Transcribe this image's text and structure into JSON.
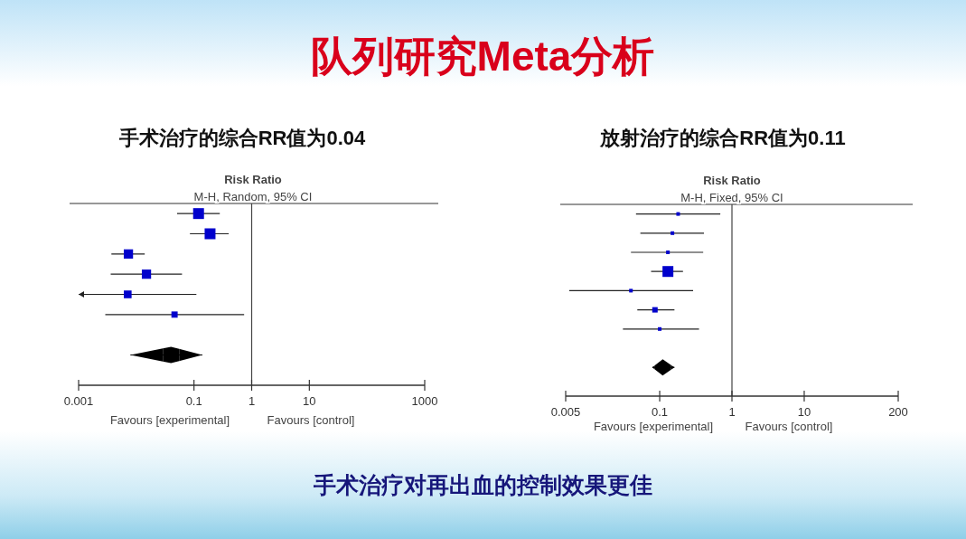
{
  "chart_data": [
    {
      "type": "other",
      "title": "队列研究Meta分析",
      "annotations": [
        "手术治疗对再出血的控制效果更佳"
      ]
    },
    {
      "type": "scatter",
      "orientation": "horizontal",
      "log": "x",
      "title": "手术治疗的综合RR值为0.04",
      "categories": [
        null,
        null,
        null,
        null,
        null,
        null,
        null,
        null,
        null
      ],
      "xlim": [
        0.001,
        1000
      ],
      "xticks": [
        0.001,
        0.1,
        1,
        10,
        1000
      ],
      "ref_lines": [
        {
          "axis": "x",
          "value": 1
        }
      ],
      "annotations": [
        "Risk Ratio",
        "M-H, Random, 95% CI",
        "Favours [experimental]",
        "Favours [control]"
      ],
      "series": [
        {
          "color": "#0000cc",
          "marker": "square",
          "values": [
            0.12,
            0.19,
            0.0073,
            0.015,
            0.0071,
            0.046,
            null,
            null,
            null
          ],
          "errors": [
            [
              0.051,
              0.28
            ],
            [
              0.085,
              0.4
            ],
            [
              0.0037,
              0.014
            ],
            [
              0.0036,
              0.062
            ],
            [
              0.001,
              0.11
            ],
            [
              0.0029,
              0.74
            ],
            null,
            null,
            null
          ],
          "sizes": [
            1,
            1,
            0.73,
            0.73,
            0.51,
            0.33,
            null,
            null,
            null
          ]
        },
        {
          "color": "#000000",
          "marker": "diamond",
          "values": [
            null,
            null,
            null,
            null,
            null,
            null,
            null,
            0.04,
            null
          ],
          "errors": [
            null,
            null,
            null,
            null,
            null,
            null,
            null,
            [
              0.0079,
              0.14
            ],
            null
          ]
        }
      ]
    },
    {
      "type": "scatter",
      "orientation": "horizontal",
      "log": "x",
      "title": "放射治疗的综合RR值为0.11",
      "categories": [
        null,
        null,
        null,
        null,
        null,
        null,
        null,
        null,
        null,
        null
      ],
      "xlim": [
        0.005,
        200
      ],
      "xticks": [
        0.005,
        0.1,
        1,
        10,
        200
      ],
      "ref_lines": [
        {
          "axis": "x",
          "value": 1
        }
      ],
      "annotations": [
        "Risk Ratio",
        "M-H, Fixed, 95% CI",
        "Favours [experimental]",
        "Favours [control]"
      ],
      "series": [
        {
          "color": "#0000cc",
          "marker": "square",
          "values": [
            0.18,
            0.15,
            0.13,
            0.13,
            0.04,
            0.086,
            0.1,
            null,
            null,
            null
          ],
          "errors": [
            [
              0.047,
              0.69
            ],
            [
              0.054,
              0.41
            ],
            [
              0.04,
              0.4
            ],
            [
              0.076,
              0.21
            ],
            [
              0.0056,
              0.29
            ],
            [
              0.049,
              0.16
            ],
            [
              0.031,
              0.35
            ],
            null,
            null,
            null
          ],
          "sizes": [
            0.06,
            0.06,
            0.06,
            1,
            0.06,
            0.25,
            0.11,
            null,
            null,
            null
          ]
        },
        {
          "color": "#000000",
          "marker": "diamond",
          "values": [
            null,
            null,
            null,
            null,
            null,
            null,
            null,
            null,
            0.11,
            null
          ],
          "errors": [
            null,
            null,
            null,
            null,
            null,
            null,
            null,
            null,
            [
              0.079,
              0.16
            ],
            null
          ]
        }
      ]
    }
  ]
}
